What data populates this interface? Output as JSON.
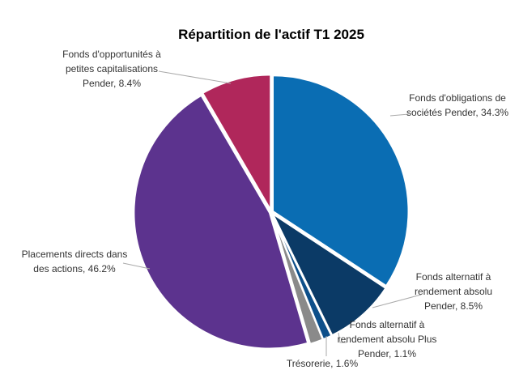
{
  "chart_data": {
    "type": "pie",
    "title": "Répartition de l'actif T1 2025",
    "start": "top",
    "direction": "clockwise",
    "slices": [
      {
        "name": "Fonds d'obligations de sociétés Pender",
        "value": 34.3,
        "color": "#0a6db3",
        "label_lines": [
          "Fonds d'obligations de",
          "sociétés Pender, 34.3%"
        ]
      },
      {
        "name": "Fonds alternatif à rendement absolu Pender",
        "value": 8.5,
        "color": "#0b3a66",
        "label_lines": [
          "Fonds alternatif à",
          "rendement absolu",
          "Pender, 8.5%"
        ]
      },
      {
        "name": "Fonds alternatif à rendement absolu Plus Pender",
        "value": 1.1,
        "color": "#0d4f8a",
        "label_lines": [
          "Fonds alternatif à",
          "rendement absolu Plus",
          "Pender, 1.1%"
        ]
      },
      {
        "name": "Trésorerie",
        "value": 1.6,
        "color": "#8a8a8a",
        "label_lines": [
          "Trésorerie, 1.6%"
        ]
      },
      {
        "name": "Placements directs dans des actions",
        "value": 46.2,
        "color": "#5c338e",
        "label_lines": [
          "Placements directs dans",
          "des actions, 46.2%"
        ]
      },
      {
        "name": "Fonds d'opportunités à petites capitalisations Pender",
        "value": 8.4,
        "color": "#b0275b",
        "label_lines": [
          "Fonds d'opportunités à",
          "petites capitalisations",
          "Pender, 8.4%"
        ]
      }
    ]
  }
}
